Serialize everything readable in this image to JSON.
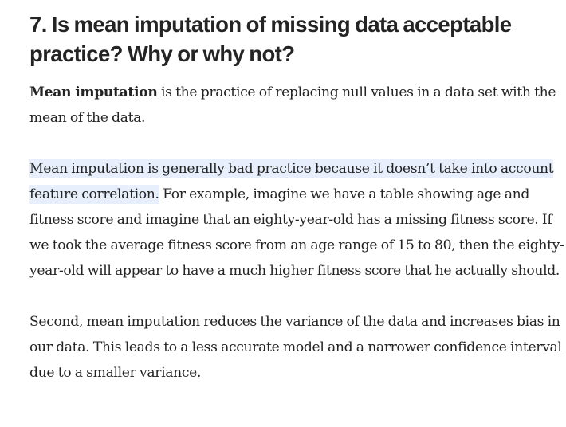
{
  "heading": "7. Is mean imputation of missing data acceptable practice? Why or why not?",
  "paragraphs": [
    {
      "bold_lead": "Mean imputation",
      "text": " is the practice of replacing null values in a data set with the mean of the data."
    },
    {
      "highlighted": "Mean imputation is generally bad practice because it doesn’t take into account feature correlation.",
      "text": " For example, imagine we have a table showing age and fitness score and imagine that an eighty-year-old has a missing fitness score. If we took the average fitness score from an age range of 15 to 80, then the eighty-year-old will appear to have a much higher fitness score that he actually should."
    },
    {
      "text": "Second, mean imputation reduces the variance of the data and increases bias in our data. This leads to a less accurate model and a narrower confidence interval due to a smaller variance."
    }
  ],
  "colors": {
    "text": "#242424",
    "highlight": "#e6effb"
  }
}
